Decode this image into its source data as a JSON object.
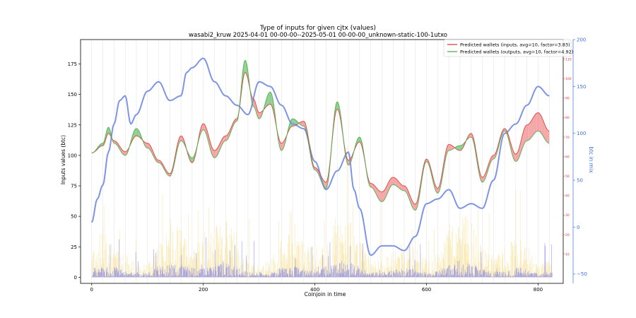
{
  "chart_data": {
    "type": "line",
    "title": "Type of inputs for given cjtx (values)",
    "subtitle": "wasabi2_kruw 2025-04-01 00-00-00--2025-05-01 00-00-00_unknown-static-100-1utxo",
    "xlabel": "Coinjoin in time",
    "ylabel": "Inputs values (btc)",
    "y2label": "btc in mix",
    "xlim": [
      -20,
      845
    ],
    "ylim": [
      -5,
      195
    ],
    "y2lim": [
      -60,
      200
    ],
    "y3lim": [
      -5,
      120
    ],
    "xticks": [
      0,
      200,
      400,
      600,
      800
    ],
    "yticks": [
      0,
      25,
      50,
      75,
      100,
      125,
      150,
      175
    ],
    "y2ticks": [
      -50,
      0,
      50,
      100,
      150,
      200
    ],
    "y3ticks": [
      10,
      20,
      30,
      40,
      50,
      60,
      70,
      80,
      90,
      100,
      110
    ],
    "legend_position": "top-right",
    "legend": [
      "Predicted wallets (inputs, avg=10, factor=3.83)",
      "Predicted wallets (outputs, avg=10, factor=4.92)"
    ],
    "colors": {
      "inputs_line": "#d9413a",
      "outputs_line": "#4caf50",
      "fill_inputs_higher": "#f07c7c",
      "fill_outputs_higher": "#5cb85c",
      "mix_line": "#7f95e3",
      "bars_yellow": "#f7d774",
      "bars_blue": "#6b6ff0",
      "bars_orange": "#f4a261",
      "right_axis_red": "#e53935",
      "right_axis_blue": "#3f6fd8"
    },
    "series": [
      {
        "name": "Predicted wallets (inputs, avg=10, factor=3.83)",
        "x": [
          0,
          20,
          30,
          40,
          60,
          80,
          100,
          120,
          140,
          160,
          180,
          200,
          220,
          240,
          260,
          275,
          290,
          300,
          320,
          340,
          360,
          380,
          400,
          420,
          440,
          460,
          480,
          500,
          520,
          540,
          560,
          580,
          600,
          620,
          640,
          660,
          680,
          700,
          720,
          740,
          760,
          780,
          800,
          820
        ],
        "values": [
          102,
          108,
          118,
          112,
          103,
          116,
          110,
          96,
          85,
          116,
          94,
          126,
          104,
          116,
          130,
          168,
          146,
          135,
          142,
          110,
          124,
          128,
          90,
          78,
          138,
          96,
          111,
          77,
          70,
          82,
          75,
          60,
          97,
          73,
          109,
          104,
          118,
          82,
          100,
          122,
          101,
          125,
          135,
          120
        ]
      },
      {
        "name": "Predicted wallets (outputs, avg=10, factor=4.92)",
        "x": [
          0,
          20,
          30,
          40,
          60,
          80,
          100,
          120,
          140,
          160,
          180,
          200,
          220,
          240,
          260,
          275,
          290,
          300,
          320,
          340,
          360,
          380,
          400,
          420,
          440,
          460,
          480,
          500,
          520,
          540,
          560,
          580,
          600,
          620,
          640,
          660,
          680,
          700,
          720,
          740,
          760,
          780,
          800,
          820
        ],
        "values": [
          102,
          110,
          123,
          110,
          100,
          122,
          106,
          94,
          83,
          112,
          98,
          121,
          98,
          112,
          128,
          178,
          140,
          130,
          152,
          104,
          130,
          124,
          88,
          73,
          144,
          92,
          115,
          74,
          62,
          76,
          71,
          55,
          95,
          69,
          104,
          108,
          115,
          78,
          97,
          120,
          95,
          112,
          120,
          110
        ]
      },
      {
        "name": "btc in mix",
        "x": [
          0,
          10,
          20,
          30,
          40,
          50,
          60,
          70,
          80,
          100,
          120,
          140,
          160,
          170,
          180,
          200,
          220,
          240,
          260,
          280,
          300,
          320,
          340,
          360,
          380,
          400,
          420,
          440,
          460,
          470,
          480,
          500,
          520,
          540,
          560,
          580,
          600,
          620,
          640,
          660,
          680,
          700,
          720,
          740,
          760,
          780,
          800,
          820
        ],
        "values": [
          5,
          30,
          45,
          80,
          110,
          135,
          140,
          110,
          120,
          145,
          155,
          135,
          140,
          165,
          170,
          180,
          155,
          140,
          130,
          120,
          155,
          150,
          130,
          110,
          105,
          70,
          40,
          60,
          80,
          40,
          20,
          -30,
          -20,
          -20,
          -25,
          -10,
          25,
          30,
          40,
          20,
          25,
          20,
          50,
          100,
          110,
          130,
          150,
          140
        ]
      }
    ]
  }
}
